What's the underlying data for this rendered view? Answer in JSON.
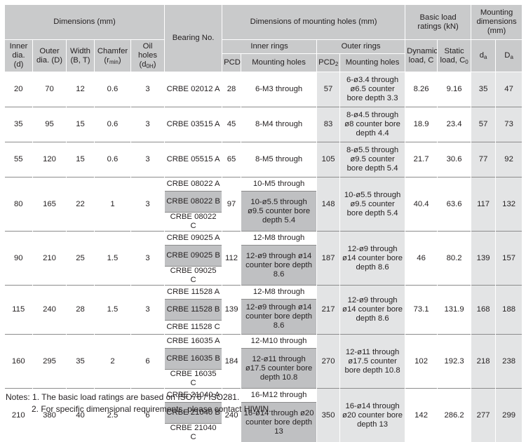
{
  "headers": {
    "dimensions_group": "Dimensions (mm)",
    "bearing_no": "Bearing No.",
    "mounting_holes_group": "Dimensions of mounting holes (mm)",
    "load_ratings_group": "Basic load ratings (kN)",
    "mounting_dims_group": "Mounting dimensions (mm)",
    "inner_rings": "Inner rings",
    "outer_rings": "Outer rings",
    "inner_dia": "Inner dia. (d)",
    "outer_dia": "Outer dia. (D)",
    "width": "Width (B, T)",
    "chamfer": "Chamfer (r",
    "chamfer_sub": "min",
    "oil_holes": "Oil holes (d",
    "oil_holes_sub": "0H",
    "pcd1": "PCD",
    "pcd1_sub": "1",
    "inner_mount_holes": "Mounting holes",
    "pcd2": "PCD",
    "pcd2_sub": "2",
    "outer_mount_holes": "Mounting holes",
    "dynamic": "Dynamic load, C",
    "static": "Static load, C",
    "static_sub": "0",
    "da_letter": "d",
    "da_sub": "a",
    "Da_letter": "D",
    "Da_sub": "a",
    "close_paren": ")"
  },
  "rows": [
    {
      "d": "20",
      "D": "70",
      "B": "12",
      "r": "0.6",
      "oil": "3",
      "bearing": [
        "CRBE 02012 A"
      ],
      "pcd1": "28",
      "inner": [
        "6-M3 through"
      ],
      "pcd2": "57",
      "outer": "6-ø3.4 through ø6.5 counter bore depth 3.3",
      "C": "8.26",
      "C0": "9.16",
      "da": "35",
      "Da": "47"
    },
    {
      "d": "35",
      "D": "95",
      "B": "15",
      "r": "0.6",
      "oil": "3",
      "bearing": [
        "CRBE 03515 A"
      ],
      "pcd1": "45",
      "inner": [
        "8-M4 through"
      ],
      "pcd2": "83",
      "outer": "8-ø4.5 through ø8 counter bore depth 4.4",
      "C": "18.9",
      "C0": "23.4",
      "da": "57",
      "Da": "73"
    },
    {
      "d": "55",
      "D": "120",
      "B": "15",
      "r": "0.6",
      "oil": "3",
      "bearing": [
        "CRBE 05515 A"
      ],
      "pcd1": "65",
      "inner": [
        "8-M5 through"
      ],
      "pcd2": "105",
      "outer": "8-ø5.5 through ø9.5 counter bore depth 5.4",
      "C": "21.7",
      "C0": "30.6",
      "da": "77",
      "Da": "92"
    },
    {
      "d": "80",
      "D": "165",
      "B": "22",
      "r": "1",
      "oil": "3",
      "bearing": [
        "CRBE 08022 A",
        "CRBE 08022 B",
        "CRBE 08022 C"
      ],
      "pcd1": "97",
      "inner": [
        "10-M5 through",
        "10-ø5.5 through ø9.5 counter bore depth 5.4"
      ],
      "pcd2": "148",
      "outer": "10-ø5.5 through ø9.5 counter bore depth 5.4",
      "C": "40.4",
      "C0": "63.6",
      "da": "117",
      "Da": "132"
    },
    {
      "d": "90",
      "D": "210",
      "B": "25",
      "r": "1.5",
      "oil": "3",
      "bearing": [
        "CRBE 09025 A",
        "CRBE 09025 B",
        "CRBE 09025 C"
      ],
      "pcd1": "112",
      "inner": [
        "12-M8 through",
        "12-ø9 through ø14 counter bore depth 8.6"
      ],
      "pcd2": "187",
      "outer": "12-ø9 through ø14 counter bore depth 8.6",
      "C": "46",
      "C0": "80.2",
      "da": "139",
      "Da": "157"
    },
    {
      "d": "115",
      "D": "240",
      "B": "28",
      "r": "1.5",
      "oil": "3",
      "bearing": [
        "CRBE 11528 A",
        "CRBE 11528 B",
        "CRBE 11528 C"
      ],
      "pcd1": "139",
      "inner": [
        "12-M8 through",
        "12-ø9 through ø14 counter bore depth 8.6"
      ],
      "pcd2": "217",
      "outer": "12-ø9 through ø14 counter bore depth 8.6",
      "C": "73.1",
      "C0": "131.9",
      "da": "168",
      "Da": "188"
    },
    {
      "d": "160",
      "D": "295",
      "B": "35",
      "r": "2",
      "oil": "6",
      "bearing": [
        "CRBE 16035 A",
        "CRBE 16035 B",
        "CRBE 16035 C"
      ],
      "pcd1": "184",
      "inner": [
        "12-M10 through",
        "12-ø11 through ø17.5 counter bore depth 10.8"
      ],
      "pcd2": "270",
      "outer": "12-ø11 through ø17.5 counter bore depth 10.8",
      "C": "102",
      "C0": "192.3",
      "da": "218",
      "Da": "238"
    },
    {
      "d": "210",
      "D": "380",
      "B": "40",
      "r": "2.5",
      "oil": "6",
      "bearing": [
        "CRBE 21040 A",
        "CRBE 21040 B",
        "CRBE 21040 C"
      ],
      "pcd1": "240",
      "inner": [
        "16-M12 through",
        "16-ø14 through ø20 counter bore depth 13"
      ],
      "pcd2": "350",
      "outer": "16-ø14 through ø20 counter bore depth 13",
      "C": "142",
      "C0": "286.2",
      "da": "277",
      "Da": "299"
    }
  ],
  "notes": {
    "line1": "Notes: 1. The basic load ratings are based on ISO76 / ISO281.",
    "line2": "2. For specific dimensional requirements, please contact HIWIN."
  }
}
